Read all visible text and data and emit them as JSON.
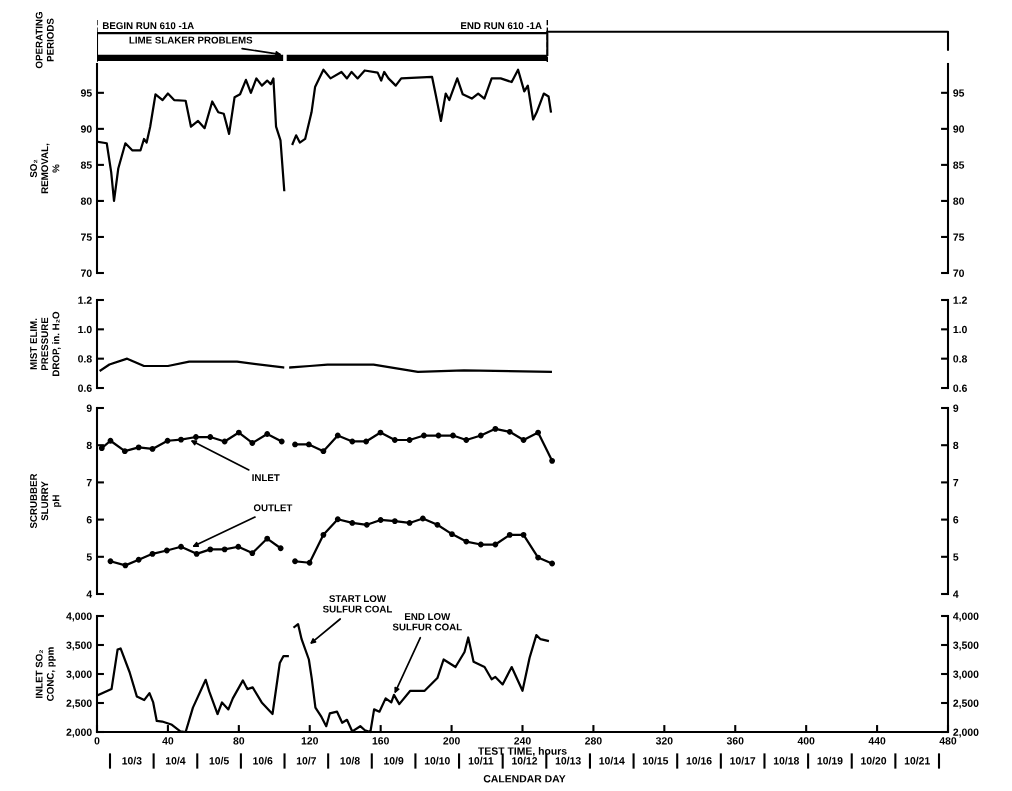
{
  "chart_data": [
    {
      "type": "bar",
      "orientation": "horizontal",
      "ylabel": "OPERATING\nPERIODS",
      "categories": [
        null
      ],
      "xlim": [
        0,
        480
      ],
      "xticks": [
        0,
        40,
        80,
        120,
        160,
        200,
        240,
        280,
        320,
        360,
        400,
        440,
        480
      ],
      "tick_labels": false,
      "series": [
        {
          "color": "#000000",
          "base": [
            0
          ],
          "values": [
            105
          ]
        },
        {
          "color": "#000000",
          "base": [
            107
          ],
          "values": [
            147
          ]
        }
      ],
      "ref_lines": [
        {
          "axis": "x",
          "value": 0,
          "label": "BEGIN RUN 610 -1A",
          "line_style": "dashed"
        },
        {
          "axis": "x",
          "value": 254,
          "label": "END RUN 610 -1A",
          "line_style": "dashed"
        }
      ],
      "annotations": [
        "LIME SLAKER PROBLEMS"
      ]
    },
    {
      "type": "line",
      "ylabel": "SO₂\nREMOVAL,\n%",
      "xlim": [
        0,
        480
      ],
      "xticks": [
        0,
        40,
        80,
        120,
        160,
        200,
        240,
        280,
        320,
        360,
        400,
        440,
        480
      ],
      "ylim": [
        70,
        99
      ],
      "yticks": [
        70,
        75,
        80,
        85,
        90,
        95
      ],
      "y2lim": [
        70,
        99
      ],
      "y2ticks": [
        70,
        75,
        80,
        85,
        90,
        95
      ],
      "tick_labels": "y",
      "series": [
        {
          "color": "#000000",
          "marker": "none",
          "x": [
            0.5,
            5.5,
            8,
            9.6,
            12,
            16,
            20,
            24.5,
            26.5,
            28,
            30,
            33,
            37,
            40,
            43.5,
            50,
            53,
            57,
            60.7,
            65,
            68.4,
            71.5,
            74.5,
            77.6,
            80.7,
            84,
            86.8,
            89.9,
            93,
            96,
            98,
            99.5,
            101,
            103.5,
            105.6,
            107,
            110.3,
            112.3,
            114.4,
            117.4,
            121,
            123,
            127.7,
            131.7,
            137.9,
            141,
            143.6,
            147,
            151,
            158.3,
            160.3,
            162,
            164.4,
            168.5,
            171.6,
            189,
            191,
            194,
            196.7,
            198.7,
            203.2,
            206.3,
            211.4,
            215,
            218.5,
            222.6,
            227.7,
            233.9,
            237.5,
            241,
            243,
            246,
            248,
            252,
            254.7,
            256
          ],
          "values": [
            88.2,
            88.0,
            84.0,
            80.0,
            84.5,
            88.0,
            87.0,
            87.0,
            88.6,
            88.1,
            90.3,
            94.8,
            94.0,
            94.9,
            94.0,
            93.9,
            90.3,
            91.1,
            90.1,
            93.8,
            92.3,
            92.1,
            89.3,
            94.4,
            94.8,
            96.8,
            95.0,
            97.0,
            96.0,
            96.7,
            96.2,
            97.0,
            90.3,
            88.4,
            81.5,
            null,
            87.9,
            89.1,
            88.1,
            88.6,
            92.3,
            95.8,
            98.2,
            97.0,
            97.9,
            97.0,
            97.9,
            97.0,
            98.1,
            97.8,
            96.7,
            97.9,
            97.0,
            96.0,
            97.0,
            97.2,
            94.8,
            91.1,
            94.9,
            94.0,
            97.0,
            94.8,
            94.2,
            94.9,
            94.2,
            97.0,
            97.0,
            96.5,
            98.2,
            95.2,
            96.0,
            91.3,
            92.3,
            94.9,
            94.5,
            92.4
          ]
        }
      ]
    },
    {
      "type": "line",
      "ylabel": "MIST ELIM.\nPRESSURE\nDROP, in. H₂O",
      "xlim": [
        0,
        480
      ],
      "xticks": [
        0,
        40,
        80,
        120,
        160,
        200,
        240,
        280,
        320,
        360,
        400,
        440,
        480
      ],
      "ylim": [
        0.6,
        1.2
      ],
      "yticks": [
        {
          "value": 0.6,
          "label": "0.6"
        },
        {
          "value": 0.8,
          "label": "0.8"
        },
        {
          "value": 1.0,
          "label": "1.0"
        },
        {
          "value": 1.2,
          "label": "1.2"
        }
      ],
      "y2lim": [
        0.6,
        1.2
      ],
      "y2ticks": [
        {
          "value": 0.6,
          "label": "0.6"
        },
        {
          "value": 0.8,
          "label": "0.8"
        },
        {
          "value": 1.0,
          "label": "1.0"
        },
        {
          "value": 1.2,
          "label": "1.2"
        }
      ],
      "tick_labels": "y",
      "series": [
        {
          "color": "#000000",
          "marker": "none",
          "x": [
            2,
            7,
            17,
            26.5,
            40,
            52,
            79,
            105,
            107,
            109,
            120,
            130,
            156,
            181,
            207,
            256
          ],
          "values": [
            0.72,
            0.76,
            0.8,
            0.75,
            0.75,
            0.78,
            0.78,
            0.74,
            null,
            0.74,
            0.75,
            0.76,
            0.76,
            0.71,
            0.72,
            0.71
          ]
        }
      ]
    },
    {
      "type": "line",
      "ylabel": "SCRUBBER\nSLURRY\npH",
      "xlim": [
        0,
        480
      ],
      "xticks": [
        0,
        40,
        80,
        120,
        160,
        200,
        240,
        280,
        320,
        360,
        400,
        440,
        480
      ],
      "ylim": [
        4,
        9
      ],
      "yticks": [
        4,
        5,
        6,
        7,
        8,
        9
      ],
      "y2lim": [
        4,
        9
      ],
      "y2ticks": [
        4,
        5,
        6,
        7,
        8,
        9
      ],
      "tick_labels": "y",
      "series": [
        {
          "color": "#000000",
          "marker": "circle",
          "x": [
            2.7,
            7.6,
            15.7,
            23.5,
            31.3,
            39.8,
            47.4,
            55.8,
            63.9,
            72,
            80,
            87.6,
            96,
            104.2,
            108,
            111.7,
            119.5,
            127.7,
            135.8,
            144,
            151.8,
            159.9,
            168,
            176.3,
            184.4,
            192.6,
            200.8,
            208.3,
            216.5,
            224.7,
            232.8,
            240.6,
            248.8,
            256.7
          ],
          "values": [
            7.92,
            8.12,
            7.84,
            7.94,
            7.9,
            8.12,
            8.15,
            8.22,
            8.22,
            8.1,
            8.34,
            8.06,
            8.3,
            8.1,
            null,
            8.02,
            8.02,
            7.84,
            8.26,
            8.1,
            8.1,
            8.34,
            8.14,
            8.14,
            8.26,
            8.26,
            8.26,
            8.14,
            8.26,
            8.44,
            8.36,
            8.14,
            8.34,
            7.58
          ]
        },
        {
          "color": "#000000",
          "marker": "circle",
          "x": [
            7.6,
            16,
            23.5,
            31.3,
            39.4,
            47.4,
            56.2,
            63.9,
            72,
            79.7,
            87.6,
            96,
            103.6,
            108,
            111.7,
            119.9,
            127.7,
            135.8,
            144,
            152.2,
            160,
            168,
            176.3,
            183.8,
            192,
            200.2,
            208.3,
            216.5,
            224.7,
            232.8,
            240.6,
            248.8,
            256.7
          ],
          "values": [
            4.88,
            4.77,
            4.92,
            5.08,
            5.17,
            5.27,
            5.08,
            5.2,
            5.2,
            5.27,
            5.1,
            5.49,
            5.23,
            null,
            4.88,
            4.84,
            5.59,
            6.01,
            5.91,
            5.86,
            5.99,
            5.96,
            5.91,
            6.03,
            5.86,
            5.61,
            5.41,
            5.33,
            5.33,
            5.59,
            5.59,
            4.98,
            4.82
          ]
        }
      ],
      "annotations": [
        {
          "text": "INLET",
          "x": 52,
          "y": 8.15
        },
        {
          "text": "OUTLET",
          "x": 53,
          "y": 5.25
        }
      ]
    },
    {
      "type": "line",
      "ylabel": "INLET SO₂\nCONC, ppm",
      "xlabel": "TEST TIME, hours",
      "xlim": [
        0,
        480
      ],
      "xticks": [
        0,
        40,
        80,
        120,
        160,
        200,
        240,
        280,
        320,
        360,
        400,
        440,
        480
      ],
      "ylim": [
        2000,
        4000
      ],
      "yticks": [
        {
          "value": 2000,
          "label": "2,000"
        },
        {
          "value": 2500,
          "label": "2,500"
        },
        {
          "value": 3000,
          "label": "3,000"
        },
        {
          "value": 3500,
          "label": "3,500"
        },
        {
          "value": 4000,
          "label": "4,000"
        }
      ],
      "y2lim": [
        2000,
        4000
      ],
      "y2ticks": [
        {
          "value": 2000,
          "label": "2,000"
        },
        {
          "value": 2500,
          "label": "2,500"
        },
        {
          "value": 3000,
          "label": "3,000"
        },
        {
          "value": 3500,
          "label": "3,500"
        },
        {
          "value": 4000,
          "label": "4,000"
        }
      ],
      "series": [
        {
          "color": "#000000",
          "marker": "none",
          "x": [
            1,
            8.2,
            11.6,
            13.3,
            18.4,
            22.5,
            26.6,
            29.6,
            31.7,
            33.7,
            36.8,
            41.9,
            47,
            50,
            54.1,
            61.3,
            63.3,
            68,
            70.5,
            74.1,
            76.6,
            82.3,
            84.8,
            87.8,
            92.9,
            99,
            103.1,
            105.2,
            107.6,
            109,
            111.3,
            113.4,
            115.4,
            119.5,
            121.1,
            123.2,
            126.6,
            129.3,
            131.3,
            135.4,
            138.3,
            141,
            144,
            148.5,
            151.1,
            154.2,
            156.3,
            159.3,
            162.8,
            166,
            167.5,
            170.5,
            176.7,
            184.8,
            192,
            195.5,
            202.2,
            207.3,
            209.4,
            212.4,
            218.6,
            222.6,
            224.7,
            228.8,
            233.9,
            240,
            244,
            247.8,
            250.2,
            254.3
          ],
          "values": [
            2640,
            2740,
            3420,
            3440,
            3030,
            2610,
            2550,
            2670,
            2510,
            2190,
            2180,
            2130,
            2010,
            2000,
            2420,
            2900,
            2700,
            2310,
            2510,
            2390,
            2580,
            2890,
            2740,
            2770,
            2510,
            2310,
            3190,
            3310,
            3310,
            null,
            3810,
            3860,
            3600,
            3250,
            2930,
            2420,
            2260,
            2100,
            2320,
            2350,
            2160,
            2210,
            2010,
            2100,
            2030,
            2000,
            2390,
            2350,
            2580,
            2510,
            2640,
            2480,
            2710,
            2710,
            2930,
            3250,
            3120,
            3380,
            3630,
            3210,
            3120,
            2910,
            2950,
            2820,
            3120,
            2710,
            3280,
            3670,
            3600,
            3570
          ]
        }
      ],
      "annotations": [
        {
          "text": "START LOW\nSULFUR COAL",
          "x": 119.5,
          "y": 3500
        },
        {
          "text": "END LOW\nSULFUR COAL",
          "x": 167.5,
          "y": 2640
        }
      ]
    },
    {
      "type": "other",
      "xlabel": "CALENDAR DAY",
      "categories": [
        "10/3",
        "10/4",
        "10/5",
        "10/6",
        "10/7",
        "10/8",
        "10/9",
        "10/10",
        "10/11",
        "10/12",
        "10/13",
        "10/14",
        "10/15",
        "10/16",
        "10/17",
        "10/18",
        "10/19",
        "10/20",
        "10/21"
      ]
    }
  ]
}
